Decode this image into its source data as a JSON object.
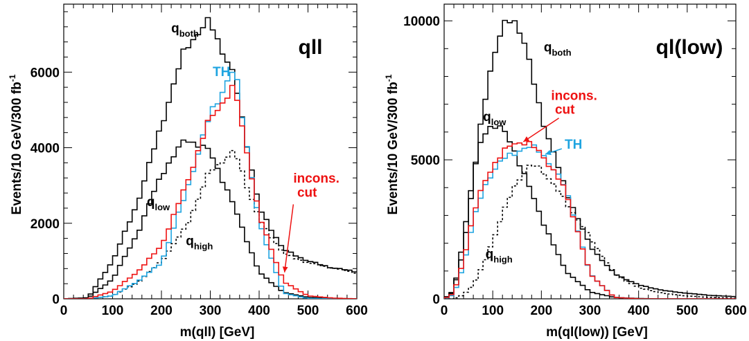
{
  "chart_data": [
    {
      "type": "line",
      "xlabel": "m(qll) [GeV]",
      "ylabel": "Events/10 GeV/300 fb",
      "ylabel_sup": "-1",
      "panel_label": "qll",
      "xlim": [
        0,
        600
      ],
      "ylim": [
        0,
        7800
      ],
      "xticks": [
        0,
        100,
        200,
        300,
        400,
        500,
        600
      ],
      "yticks": [
        0,
        2000,
        4000,
        6000
      ],
      "bin_width": 10,
      "colors": {
        "black": "#000000",
        "red": "#ee1111",
        "blue": "#1fa4e0"
      },
      "series": [
        {
          "id": "qboth",
          "color": "black",
          "style": "solid",
          "x": [
            0,
            50,
            100,
            150,
            200,
            250,
            300,
            350,
            400,
            450,
            500,
            550,
            600
          ],
          "y": [
            0,
            30,
            1000,
            2500,
            4600,
            6700,
            7350,
            5800,
            2400,
            1300,
            1000,
            820,
            720
          ]
        },
        {
          "id": "qlow",
          "color": "black",
          "style": "solid",
          "x": [
            0,
            50,
            100,
            150,
            200,
            250,
            300,
            350,
            400,
            450,
            500,
            550,
            600
          ],
          "y": [
            0,
            20,
            520,
            1700,
            3300,
            4250,
            3900,
            2400,
            700,
            170,
            40,
            10,
            0
          ]
        },
        {
          "id": "qhigh",
          "color": "black",
          "style": "dotted",
          "x": [
            0,
            50,
            100,
            150,
            200,
            250,
            300,
            350,
            400,
            450,
            500,
            550,
            600
          ],
          "y": [
            0,
            0,
            80,
            420,
            1000,
            1900,
            3400,
            3900,
            2100,
            1200,
            950,
            820,
            680
          ]
        },
        {
          "id": "th",
          "color": "blue",
          "style": "solid",
          "x": [
            0,
            50,
            100,
            150,
            200,
            250,
            300,
            350,
            400,
            450,
            500,
            550,
            600
          ],
          "y": [
            0,
            0,
            80,
            450,
            950,
            2800,
            4900,
            6100,
            2000,
            150,
            10,
            0,
            0
          ]
        },
        {
          "id": "incons",
          "color": "red",
          "style": "solid",
          "x": [
            0,
            50,
            100,
            150,
            200,
            250,
            300,
            350,
            400,
            450,
            500,
            550,
            600
          ],
          "y": [
            0,
            0,
            200,
            700,
            1400,
            3000,
            4800,
            5600,
            2200,
            450,
            80,
            20,
            0
          ]
        }
      ],
      "annotations": [
        {
          "text": "q",
          "sub": "both",
          "x": 220,
          "y": 7050,
          "color": "black"
        },
        {
          "text": "TH",
          "x": 305,
          "y": 5900,
          "color": "blue"
        },
        {
          "text": "q",
          "sub": "low",
          "x": 170,
          "y": 2450,
          "color": "black"
        },
        {
          "text": "q",
          "sub": "high",
          "x": 250,
          "y": 1420,
          "color": "black"
        },
        {
          "text": "incons.",
          "x": 470,
          "y": 3080,
          "color": "red"
        },
        {
          "text": "cut",
          "x": 478,
          "y": 2700,
          "color": "red"
        }
      ],
      "arrows": [
        {
          "from": [
            470,
            2500
          ],
          "to": [
            452,
            700
          ],
          "color": "red"
        }
      ]
    },
    {
      "type": "line",
      "xlabel": "m(ql(low)) [GeV]",
      "ylabel": "Events/10 GeV/300 fb",
      "ylabel_sup": "-1",
      "panel_label": "ql(low)",
      "xlim": [
        0,
        600
      ],
      "ylim": [
        0,
        10600
      ],
      "xticks": [
        0,
        100,
        200,
        300,
        400,
        500,
        600
      ],
      "yticks": [
        0,
        5000,
        10000
      ],
      "bin_width": 10,
      "colors": {
        "black": "#000000",
        "red": "#ee1111",
        "blue": "#1fa4e0"
      },
      "series": [
        {
          "id": "qboth",
          "color": "black",
          "style": "solid",
          "x": [
            0,
            20,
            40,
            60,
            80,
            100,
            120,
            140,
            160,
            180,
            200,
            250,
            300,
            350,
            400,
            450,
            500,
            550,
            600
          ],
          "y": [
            0,
            300,
            1800,
            4200,
            6800,
            8700,
            9700,
            10100,
            9600,
            8100,
            6600,
            3900,
            1900,
            900,
            500,
            300,
            200,
            120,
            80
          ]
        },
        {
          "id": "qlow",
          "color": "black",
          "style": "solid",
          "x": [
            0,
            20,
            40,
            60,
            80,
            100,
            120,
            140,
            160,
            180,
            200,
            250,
            300,
            350,
            400,
            450,
            500,
            550,
            600
          ],
          "y": [
            0,
            250,
            2200,
            4500,
            5900,
            6300,
            6100,
            5500,
            4700,
            3800,
            2900,
            1000,
            250,
            50,
            10,
            0,
            0,
            0,
            0
          ]
        },
        {
          "id": "qhigh",
          "color": "black",
          "style": "dotted",
          "x": [
            0,
            20,
            40,
            60,
            80,
            100,
            120,
            140,
            160,
            180,
            200,
            250,
            300,
            350,
            400,
            450,
            500,
            550,
            600
          ],
          "y": [
            0,
            0,
            150,
            500,
            1200,
            2100,
            3000,
            3900,
            4500,
            4800,
            4700,
            3500,
            2200,
            900,
            400,
            200,
            100,
            50,
            20
          ]
        },
        {
          "id": "th",
          "color": "blue",
          "style": "solid",
          "x": [
            0,
            20,
            40,
            60,
            80,
            100,
            120,
            140,
            160,
            180,
            200,
            250,
            300,
            350,
            400,
            450,
            500,
            550,
            600
          ],
          "y": [
            0,
            150,
            1200,
            2800,
            3900,
            4600,
            5000,
            5200,
            5400,
            5450,
            5300,
            4000,
            900,
            50,
            0,
            0,
            0,
            0,
            0
          ]
        },
        {
          "id": "incons",
          "color": "red",
          "style": "solid",
          "x": [
            0,
            20,
            40,
            60,
            80,
            100,
            120,
            140,
            160,
            180,
            200,
            250,
            300,
            350,
            400,
            450,
            500,
            550,
            600
          ],
          "y": [
            0,
            200,
            1400,
            3000,
            4100,
            4800,
            5200,
            5600,
            5650,
            5500,
            5250,
            3900,
            900,
            50,
            0,
            0,
            0,
            0,
            0
          ]
        }
      ],
      "annotations": [
        {
          "text": "q",
          "sub": "both",
          "x": 205,
          "y": 8900,
          "color": "black"
        },
        {
          "text": "incons.",
          "x": 220,
          "y": 7150,
          "color": "red"
        },
        {
          "text": "cut",
          "x": 228,
          "y": 6650,
          "color": "red"
        },
        {
          "text": "q",
          "sub": "low",
          "x": 80,
          "y": 6400,
          "color": "black"
        },
        {
          "text": "TH",
          "x": 248,
          "y": 5400,
          "color": "blue"
        },
        {
          "text": "q",
          "sub": "high",
          "x": 85,
          "y": 1450,
          "color": "black"
        }
      ],
      "arrows": [
        {
          "from": [
            236,
            6500
          ],
          "to": [
            163,
            5650
          ],
          "color": "red"
        },
        {
          "from": [
            242,
            5400
          ],
          "to": [
            208,
            5200
          ],
          "color": "blue"
        }
      ]
    }
  ]
}
